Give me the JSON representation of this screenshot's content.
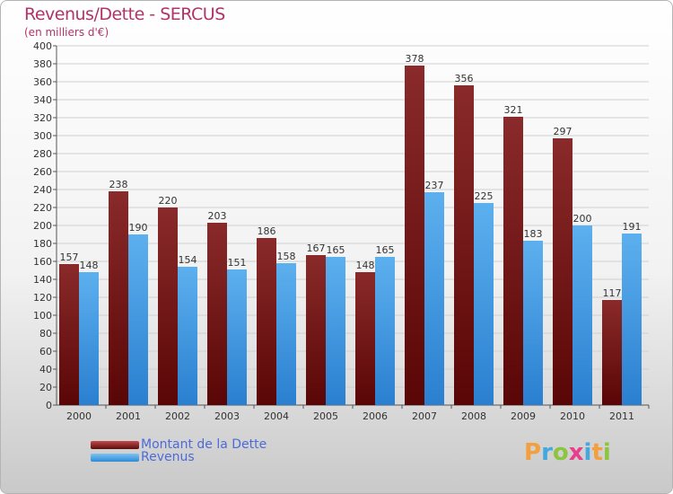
{
  "page": {
    "title": "Revenus/Dette - SERCUS",
    "subtitle": "(en milliers d'€)",
    "logo_letters": [
      {
        "ch": "P",
        "color": "#f2a03d"
      },
      {
        "ch": "r",
        "color": "#44a8e0"
      },
      {
        "ch": "o",
        "color": "#8cc63f"
      },
      {
        "ch": "x",
        "color": "#e83e8c"
      },
      {
        "ch": "i",
        "color": "#44a8e0"
      },
      {
        "ch": "t",
        "color": "#f2a03d"
      },
      {
        "ch": "i",
        "color": "#8cc63f"
      }
    ]
  },
  "colors": {
    "debt": "#7a1a1a",
    "revenue": "#4aa3e8",
    "title": "#b0336a",
    "legend_text": "#4d6bd8"
  },
  "legend": {
    "items": [
      {
        "label": "Montant de la Dette",
        "key": "debt"
      },
      {
        "label": "Revenus",
        "key": "revenue"
      }
    ]
  },
  "chart_data": {
    "type": "bar",
    "title": "Revenus/Dette - SERCUS",
    "subtitle": "(en milliers d'€)",
    "categories": [
      "2000",
      "2001",
      "2002",
      "2003",
      "2004",
      "2005",
      "2006",
      "2007",
      "2008",
      "2009",
      "2010",
      "2011"
    ],
    "series": [
      {
        "name": "Montant de la Dette",
        "values": [
          157,
          238,
          220,
          203,
          186,
          167,
          148,
          378,
          356,
          321,
          297,
          117
        ]
      },
      {
        "name": "Revenus",
        "values": [
          148,
          190,
          154,
          151,
          158,
          165,
          165,
          237,
          225,
          183,
          200,
          191
        ]
      }
    ],
    "ylim": [
      0,
      400
    ],
    "ytick_step": 20,
    "grid": true,
    "legend_position": "bottom-left"
  }
}
